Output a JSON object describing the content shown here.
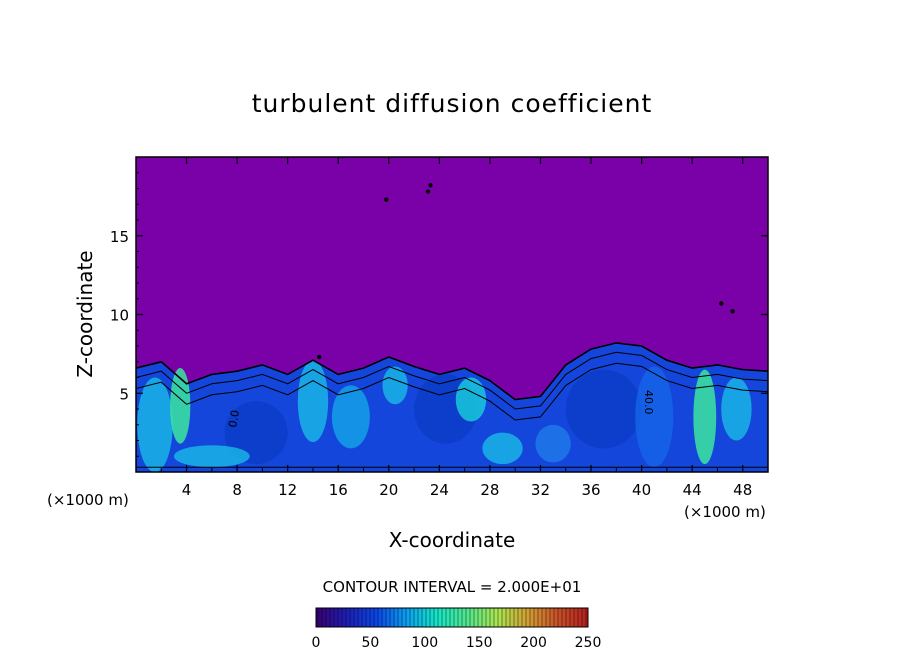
{
  "chart_data": {
    "type": "heatmap",
    "title": "turbulent diffusion coefficient",
    "xlabel": "X-coordinate",
    "ylabel": "Z-coordinate",
    "x_unit_left": "(×1000 m)",
    "x_unit_right": "(×1000 m)",
    "xlim": [
      0,
      50
    ],
    "ylim": [
      0,
      20
    ],
    "x_ticks": [
      "4",
      "8",
      "12",
      "16",
      "20",
      "24",
      "28",
      "32",
      "36",
      "40",
      "44",
      "48"
    ],
    "y_ticks": [
      "5",
      "10",
      "15"
    ],
    "x_tick_values": [
      4,
      8,
      12,
      16,
      20,
      24,
      28,
      32,
      36,
      40,
      44,
      48
    ],
    "y_tick_values": [
      5,
      10,
      15
    ],
    "background_color": "#7a00a8",
    "contour_interval_text": "CONTOUR INTERVAL = 2.000E+01",
    "contour_labels": [
      "0.0",
      "40.0"
    ],
    "colorbar": {
      "min": 0,
      "max": 250,
      "ticks": [
        "0",
        "50",
        "100",
        "150",
        "200",
        "250"
      ],
      "tick_values": [
        0,
        50,
        100,
        150,
        200,
        250
      ],
      "colors": [
        "#3a0070",
        "#1e1eb4",
        "#0a46e6",
        "#0aa0f0",
        "#14e6c8",
        "#50e68c",
        "#aae650",
        "#d2a032",
        "#c85028",
        "#b41e1e"
      ]
    },
    "turbulent_layer_top": [
      [
        0,
        6.6
      ],
      [
        2,
        7.0
      ],
      [
        4,
        5.6
      ],
      [
        6,
        6.2
      ],
      [
        8,
        6.4
      ],
      [
        10,
        6.8
      ],
      [
        12,
        6.2
      ],
      [
        14,
        7.1
      ],
      [
        16,
        6.2
      ],
      [
        18,
        6.6
      ],
      [
        20,
        7.3
      ],
      [
        22,
        6.7
      ],
      [
        24,
        6.2
      ],
      [
        26,
        6.6
      ],
      [
        28,
        5.8
      ],
      [
        30,
        4.6
      ],
      [
        32,
        4.8
      ],
      [
        34,
        6.8
      ],
      [
        36,
        7.8
      ],
      [
        38,
        8.2
      ],
      [
        40,
        8.0
      ],
      [
        42,
        7.1
      ],
      [
        44,
        6.6
      ],
      [
        46,
        6.8
      ],
      [
        48,
        6.5
      ],
      [
        50,
        6.4
      ]
    ]
  }
}
